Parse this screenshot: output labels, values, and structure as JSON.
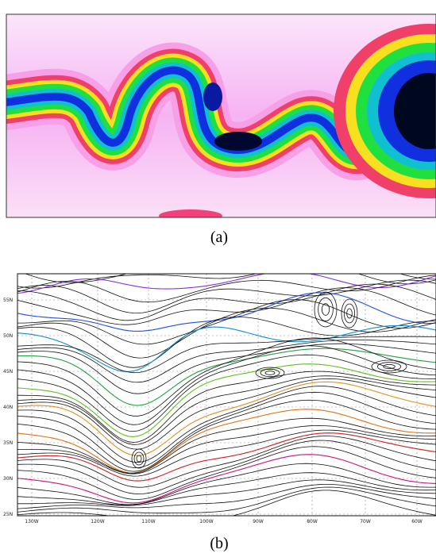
{
  "panels": [
    {
      "caption": "(a)"
    },
    {
      "caption": "(b)",
      "lat_labels": [
        "55N",
        "50N",
        "45N",
        "40N",
        "35N",
        "30N",
        "25N"
      ],
      "lon_labels": [
        "130W",
        "120W",
        "110W",
        "100W",
        "90W",
        "80W",
        "70W",
        "60W"
      ]
    }
  ]
}
